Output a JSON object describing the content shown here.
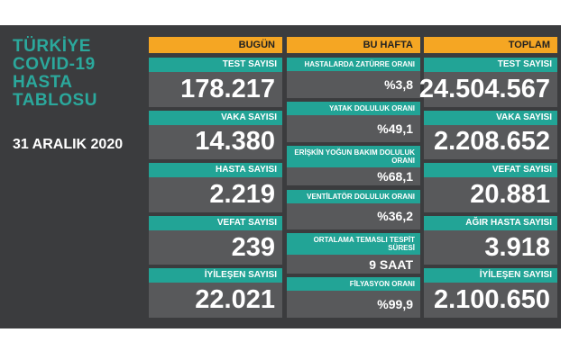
{
  "header": {
    "title_lines": [
      "TÜRKİYE",
      "COVID-19",
      "HASTA",
      "TABLOSU"
    ],
    "date": "31 ARALIK 2020"
  },
  "columns": [
    {
      "header": "BUGÜN",
      "cells": [
        {
          "label": "TEST SAYISI",
          "value": "178.217"
        },
        {
          "label": "VAKA SAYISI",
          "value": "14.380"
        },
        {
          "label": "HASTA SAYISI",
          "value": "2.219"
        },
        {
          "label": "VEFAT SAYISI",
          "value": "239"
        },
        {
          "label": "İYİLEŞEN SAYISI",
          "value": "22.021"
        }
      ]
    },
    {
      "header": "BU HAFTA",
      "cells": [
        {
          "label": "HASTALARDA ZATÜRRE ORANI",
          "value": "%3,8"
        },
        {
          "label": "YATAK DOLULUK ORANI",
          "value": "%49,1"
        },
        {
          "label": "ERİŞKİN YOĞUN BAKIM DOLULUK ORANI",
          "value": "%68,1"
        },
        {
          "label": "VENTİLATÖR DOLULUK ORANI",
          "value": "%36,2"
        },
        {
          "label": "ORTALAMA TEMASLI TESPİT SÜRESİ",
          "value": "9 SAAT"
        },
        {
          "label": "FİLYASYON ORANI",
          "value": "%99,9"
        }
      ]
    },
    {
      "header": "TOPLAM",
      "cells": [
        {
          "label": "TEST SAYISI",
          "value": "24.504.567"
        },
        {
          "label": "VAKA SAYISI",
          "value": "2.208.652"
        },
        {
          "label": "VEFAT SAYISI",
          "value": "20.881"
        },
        {
          "label": "AĞIR HASTA SAYISI",
          "value": "3.918"
        },
        {
          "label": "İYİLEŞEN SAYISI",
          "value": "2.100.650"
        }
      ]
    }
  ]
}
